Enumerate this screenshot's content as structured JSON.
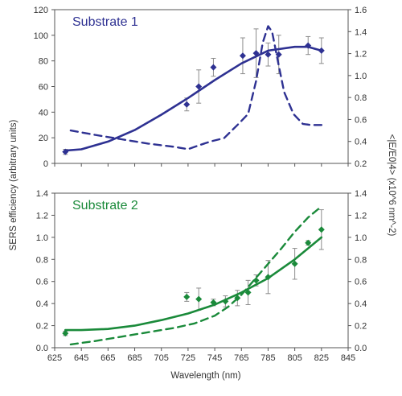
{
  "colors": {
    "panel1": "#2e3192",
    "panel2": "#1a8a3a",
    "errorbar": "#8c8c8c",
    "axis": "#555555"
  },
  "chart_data": [
    {
      "type": "line",
      "title": "Substrate 1",
      "xlabel": "Wavelength (nm)",
      "ylabel": "SERS efficiency (arbitrary units)",
      "y2label": "<|E/E0|4> (x10^6 nm^-2)",
      "xlim": [
        625,
        845
      ],
      "ylim": [
        0,
        120
      ],
      "y2lim": [
        0.2,
        1.6
      ],
      "xticks": [
        625,
        645,
        665,
        685,
        705,
        725,
        745,
        765,
        785,
        805,
        825,
        845
      ],
      "yticks": [
        0,
        20,
        40,
        60,
        80,
        100,
        120
      ],
      "yticklabels": [
        "0",
        "20",
        "40",
        "60",
        "80",
        "100",
        "120"
      ],
      "y2ticks": [
        0.2,
        0.4,
        0.6,
        0.8,
        1.0,
        1.2,
        1.4,
        1.6
      ],
      "y2ticklabels": [
        "0.2",
        "0.4",
        "0.6",
        "0.8",
        "1.0",
        "1.2",
        "1.4",
        "1.6"
      ],
      "grid": false,
      "series": [
        {
          "kind": "points-with-errorbars",
          "axis": "left",
          "points": [
            {
              "x": 633,
              "y": 9,
              "err": 2
            },
            {
              "x": 724,
              "y": 46,
              "err": 5
            },
            {
              "x": 733,
              "y": 60,
              "err": 13
            },
            {
              "x": 744,
              "y": 75,
              "err": 7
            },
            {
              "x": 766,
              "y": 84,
              "err": 14
            },
            {
              "x": 776,
              "y": 86,
              "err": 19
            },
            {
              "x": 785,
              "y": 85,
              "err": 9
            },
            {
              "x": 793,
              "y": 85,
              "err": 15
            },
            {
              "x": 815,
              "y": 92,
              "err": 7
            },
            {
              "x": 825,
              "y": 88,
              "err": 10
            }
          ]
        },
        {
          "kind": "fit-solid",
          "axis": "left",
          "x": [
            633,
            645,
            665,
            685,
            705,
            725,
            745,
            765,
            785,
            805,
            815,
            825
          ],
          "y": [
            10,
            11,
            17,
            26,
            38,
            51,
            65,
            78,
            88,
            91,
            91,
            88
          ]
        },
        {
          "kind": "dashed",
          "axis": "right",
          "x": [
            637,
            655,
            675,
            695,
            715,
            725,
            732,
            742,
            752,
            762,
            770,
            776,
            781,
            785,
            788,
            792,
            797,
            804,
            811,
            817,
            822,
            826
          ],
          "y": [
            0.5,
            0.46,
            0.42,
            0.38,
            0.35,
            0.33,
            0.36,
            0.4,
            0.43,
            0.55,
            0.65,
            0.95,
            1.3,
            1.45,
            1.4,
            1.15,
            0.85,
            0.65,
            0.56,
            0.55,
            0.55,
            0.55
          ]
        }
      ]
    },
    {
      "type": "line",
      "title": "Substrate 2",
      "xlabel": "Wavelength (nm)",
      "ylabel": "SERS efficiency (arbitrary units)",
      "y2label": "<|E/E0|4> (x10^6 nm^-2)",
      "xlim": [
        625,
        845
      ],
      "ylim": [
        0,
        1.4
      ],
      "y2lim": [
        0,
        1.4
      ],
      "xticks": [
        625,
        645,
        665,
        685,
        705,
        725,
        745,
        765,
        785,
        805,
        825,
        845
      ],
      "yticks": [
        0,
        0.2,
        0.4,
        0.6,
        0.8,
        1.0,
        1.2,
        1.4
      ],
      "yticklabels": [
        "0.0",
        "0.2",
        "0.4",
        "0.6",
        "0.8",
        "1.0",
        "1.2",
        "1.4"
      ],
      "y2ticks": [
        0,
        0.2,
        0.4,
        0.6,
        0.8,
        1.0,
        1.2,
        1.4
      ],
      "y2ticklabels": [
        "0.0",
        "0.2",
        "0.4",
        "0.6",
        "0.8",
        "1.0",
        "1.2",
        "1.4"
      ],
      "grid": false,
      "series": [
        {
          "kind": "points-with-errorbars",
          "axis": "left",
          "points": [
            {
              "x": 633,
              "y": 0.13,
              "err": 0.02
            },
            {
              "x": 724,
              "y": 0.46,
              "err": 0.04
            },
            {
              "x": 733,
              "y": 0.44,
              "err": 0.1
            },
            {
              "x": 744,
              "y": 0.41,
              "err": 0.03
            },
            {
              "x": 753,
              "y": 0.42,
              "err": 0.05
            },
            {
              "x": 762,
              "y": 0.45,
              "err": 0.07
            },
            {
              "x": 770,
              "y": 0.5,
              "err": 0.11
            },
            {
              "x": 776,
              "y": 0.61,
              "err": 0.05
            },
            {
              "x": 785,
              "y": 0.64,
              "err": 0.15
            },
            {
              "x": 805,
              "y": 0.76,
              "err": 0.14
            },
            {
              "x": 815,
              "y": 0.95,
              "err": 0.02
            },
            {
              "x": 825,
              "y": 1.07,
              "err": 0.18
            }
          ]
        },
        {
          "kind": "fit-solid",
          "axis": "left",
          "x": [
            633,
            645,
            665,
            685,
            705,
            725,
            745,
            765,
            785,
            805,
            825
          ],
          "y": [
            0.16,
            0.16,
            0.17,
            0.2,
            0.25,
            0.31,
            0.39,
            0.5,
            0.63,
            0.8,
            1.0
          ]
        },
        {
          "kind": "dashed",
          "axis": "right",
          "x": [
            637,
            655,
            675,
            695,
            715,
            730,
            745,
            755,
            765,
            775,
            785,
            795,
            805,
            815,
            825
          ],
          "y": [
            0.03,
            0.06,
            0.1,
            0.14,
            0.18,
            0.22,
            0.29,
            0.37,
            0.48,
            0.62,
            0.76,
            0.9,
            1.05,
            1.18,
            1.28
          ]
        }
      ]
    }
  ]
}
